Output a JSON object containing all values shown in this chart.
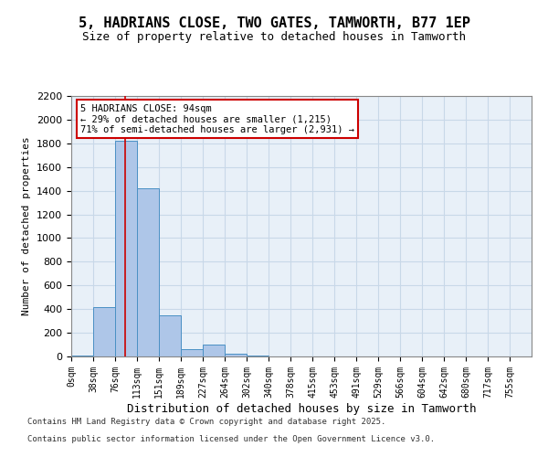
{
  "title": "5, HADRIANS CLOSE, TWO GATES, TAMWORTH, B77 1EP",
  "subtitle": "Size of property relative to detached houses in Tamworth",
  "xlabel": "Distribution of detached houses by size in Tamworth",
  "ylabel": "Number of detached properties",
  "footer_line1": "Contains HM Land Registry data © Crown copyright and database right 2025.",
  "footer_line2": "Contains public sector information licensed under the Open Government Licence v3.0.",
  "bin_labels": [
    "0sqm",
    "38sqm",
    "76sqm",
    "113sqm",
    "151sqm",
    "189sqm",
    "227sqm",
    "264sqm",
    "302sqm",
    "340sqm",
    "378sqm",
    "415sqm",
    "453sqm",
    "491sqm",
    "529sqm",
    "566sqm",
    "604sqm",
    "642sqm",
    "680sqm",
    "717sqm",
    "755sqm"
  ],
  "bar_values": [
    5,
    420,
    1820,
    1420,
    350,
    60,
    100,
    25,
    5,
    0,
    0,
    0,
    0,
    0,
    0,
    0,
    0,
    0,
    0,
    0,
    0
  ],
  "bar_color": "#aec6e8",
  "bar_edge_color": "#4a90c4",
  "grid_color": "#c8d8e8",
  "background_color": "#e8f0f8",
  "annotation_text": "5 HADRIANS CLOSE: 94sqm\n← 29% of detached houses are smaller (1,215)\n71% of semi-detached houses are larger (2,931) →",
  "annotation_box_color": "#cc0000",
  "vline_x": 94,
  "vline_color": "#cc0000",
  "ylim": [
    0,
    2200
  ],
  "yticks": [
    0,
    200,
    400,
    600,
    800,
    1000,
    1200,
    1400,
    1600,
    1800,
    2000,
    2200
  ],
  "bin_width": 38
}
